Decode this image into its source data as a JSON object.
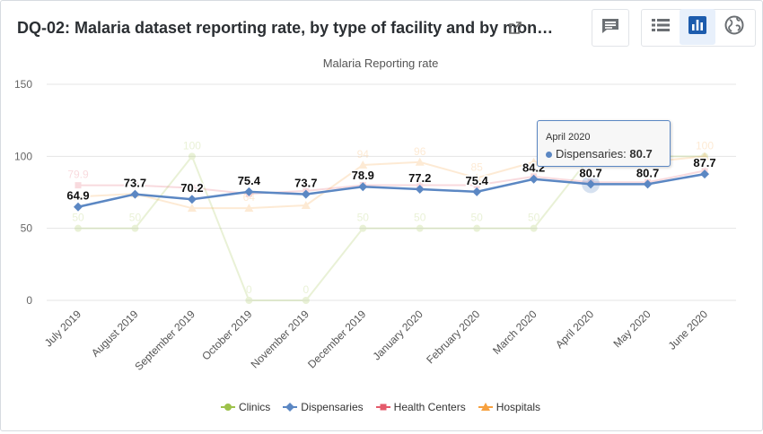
{
  "header": {
    "title": "DQ-02: Malaria dataset reporting rate, by type of facility and by mon…",
    "icons": {
      "external_link": "external-link-icon",
      "interpretations": "chat-bubble-icon",
      "table": "table-list-icon",
      "chart": "bar-chart-icon",
      "map": "globe-icon"
    },
    "active_view": "chart"
  },
  "colors": {
    "Clinics": "#9dc24b",
    "Dispensaries": "#5b87c3",
    "Health Centers": "#e45a6b",
    "Hospitals": "#f7a13f",
    "gridline": "#e5e5e5"
  },
  "tooltip": {
    "date": "April 2020",
    "series": "Dispensaries",
    "value": "80.7"
  },
  "chart_data": {
    "type": "line",
    "title": "Malaria Reporting rate",
    "xlabel": "",
    "ylabel": "",
    "ylim": [
      0,
      150
    ],
    "yticks": [
      0,
      50,
      100,
      150
    ],
    "grid": true,
    "legend_position": "bottom",
    "categories": [
      "July 2019",
      "August 2019",
      "September 2019",
      "October 2019",
      "November 2019",
      "December 2019",
      "January 2020",
      "February 2020",
      "March 2020",
      "April 2020",
      "May 2020",
      "June 2020"
    ],
    "series": [
      {
        "name": "Clinics",
        "marker": "circle",
        "faded": true,
        "values": [
          50,
          50,
          100,
          0,
          0,
          50,
          50,
          50,
          50,
          100,
          100,
          100
        ],
        "labels": [
          "50",
          "50",
          "100",
          "0",
          "0",
          "50",
          "50",
          "50",
          "50",
          "",
          "",
          ""
        ]
      },
      {
        "name": "Dispensaries",
        "marker": "diamond",
        "faded": false,
        "values": [
          64.9,
          73.7,
          70.2,
          75.4,
          73.7,
          78.9,
          77.2,
          75.4,
          84.2,
          80.7,
          80.7,
          87.7
        ],
        "labels": [
          "64.9",
          "73.7",
          "70.2",
          "75.4",
          "73.7",
          "78.9",
          "77.2",
          "75.4",
          "84.2",
          "80.7",
          "80.7",
          "87.7"
        ]
      },
      {
        "name": "Health Centers",
        "marker": "square",
        "faded": true,
        "values": [
          79.9,
          79.9,
          78,
          74,
          76,
          80,
          80,
          80,
          86,
          82,
          82,
          90
        ],
        "labels": [
          "79.9",
          "",
          "",
          "",
          "",
          "",
          "",
          "",
          "",
          "",
          "",
          ""
        ]
      },
      {
        "name": "Hospitals",
        "marker": "triangle",
        "faded": true,
        "values": [
          72,
          74,
          64,
          64,
          66,
          94,
          96,
          85,
          96,
          98,
          96,
          100
        ],
        "labels": [
          "",
          "",
          "",
          "64",
          "",
          "94",
          "96",
          "85",
          "",
          "",
          "",
          "100"
        ]
      }
    ]
  }
}
